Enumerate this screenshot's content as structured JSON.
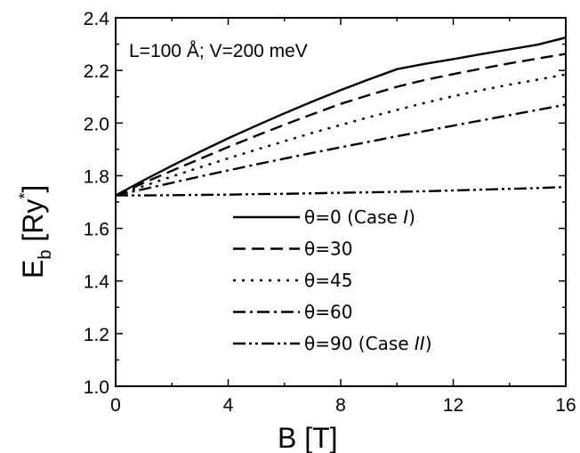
{
  "chart_data": {
    "type": "line",
    "title": "",
    "annotation": "L=100 Å; V=200 meV",
    "xlabel": "B [T]",
    "ylabel": {
      "base": "E",
      "sub": "b",
      "bracket_open": " [Ry",
      "sup": "*",
      "bracket_close": "]"
    },
    "xlim": [
      0,
      16
    ],
    "ylim": [
      1.0,
      2.4
    ],
    "x_ticks": [
      0,
      4,
      8,
      12,
      16
    ],
    "x_tick_labels": [
      "0",
      "4",
      "8",
      "12",
      "16"
    ],
    "y_ticks": [
      1.0,
      1.2,
      1.4,
      1.6,
      1.8,
      2.0,
      2.2,
      2.4
    ],
    "y_tick_labels": [
      "1.0",
      "1.2",
      "1.4",
      "1.6",
      "1.8",
      "2.0",
      "2.2",
      "2.4"
    ],
    "grid": false,
    "legend_position": "lower-right",
    "x": [
      0,
      1,
      2,
      3,
      4,
      5,
      6,
      7,
      8,
      9,
      10,
      11,
      12,
      13,
      14,
      15,
      16
    ],
    "series": [
      {
        "name": "θ=0  (Case I)",
        "label_main": "θ=0  (Case ",
        "label_italic": "I",
        "label_end": ")",
        "dash": "solid",
        "values": [
          1.725,
          1.783,
          1.838,
          1.891,
          1.942,
          1.99,
          2.037,
          2.082,
          2.125,
          2.166,
          2.205,
          2.225,
          2.243,
          2.262,
          2.28,
          2.298,
          2.325
        ]
      },
      {
        "name": "θ=30",
        "label_main": "θ=30",
        "label_italic": "",
        "label_end": "",
        "dash": "dashed",
        "values": [
          1.725,
          1.773,
          1.819,
          1.864,
          1.909,
          1.952,
          1.994,
          2.034,
          2.073,
          2.106,
          2.138,
          2.164,
          2.186,
          2.207,
          2.227,
          2.245,
          2.263
        ]
      },
      {
        "name": "θ=45",
        "label_main": "θ=45",
        "label_italic": "",
        "label_end": "",
        "dash": "dotted",
        "values": [
          1.725,
          1.761,
          1.797,
          1.832,
          1.866,
          1.899,
          1.931,
          1.963,
          1.993,
          2.022,
          2.05,
          2.077,
          2.102,
          2.125,
          2.146,
          2.165,
          2.185
        ]
      },
      {
        "name": "θ=60",
        "label_main": "θ=60",
        "label_italic": "",
        "label_end": "",
        "dash": "dashdot",
        "values": [
          1.725,
          1.749,
          1.773,
          1.797,
          1.82,
          1.843,
          1.865,
          1.887,
          1.908,
          1.929,
          1.95,
          1.97,
          1.99,
          2.01,
          2.03,
          2.05,
          2.07
        ]
      },
      {
        "name": "θ=90 (Case II)",
        "label_main": "θ=90 (Case ",
        "label_italic": "II",
        "label_end": ")",
        "dash": "dashdotdot",
        "values": [
          1.725,
          1.725,
          1.726,
          1.727,
          1.728,
          1.73,
          1.731,
          1.733,
          1.735,
          1.737,
          1.739,
          1.741,
          1.744,
          1.747,
          1.75,
          1.753,
          1.757
        ]
      }
    ]
  }
}
